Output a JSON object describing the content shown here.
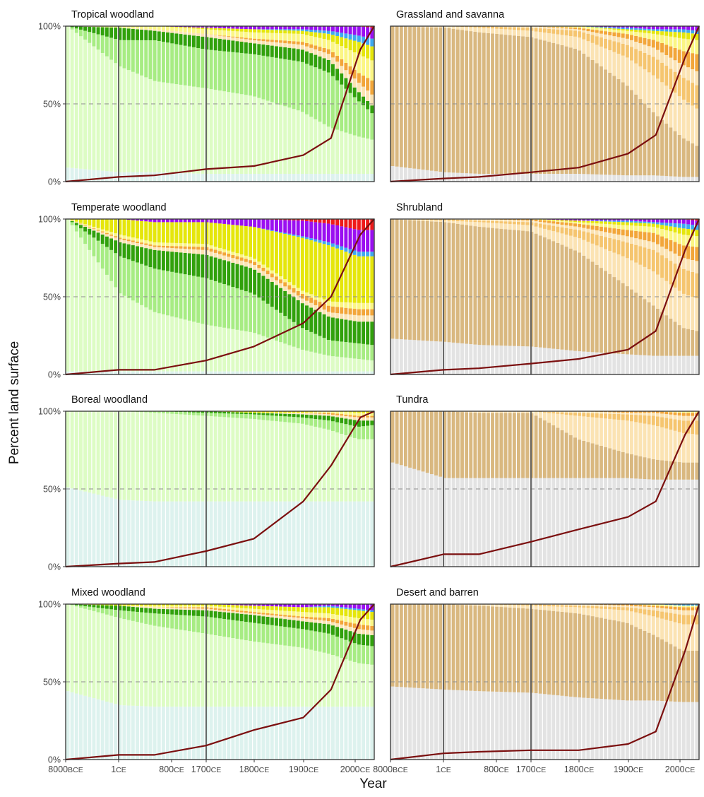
{
  "chart_data": {
    "type": "bar",
    "description_axis": {
      "xlabel": "Year",
      "ylabel": "Percent land surface",
      "yticks": [
        "0%",
        "50%",
        "100%"
      ],
      "xticks": [
        {
          "num": "8000",
          "era": "BCE"
        },
        {
          "num": "1",
          "era": "CE"
        },
        {
          "num": "800",
          "era": "CE"
        },
        {
          "num": "1700",
          "era": "CE"
        },
        {
          "num": "1800",
          "era": "CE"
        },
        {
          "num": "1900",
          "era": "CE"
        },
        {
          "num": "2000",
          "era": "CE"
        }
      ],
      "ylim": [
        0,
        100
      ],
      "vertical_reference_lines": [
        "1CE",
        "1700CE"
      ],
      "horizontal_reference_line": "50%",
      "grid": false
    },
    "colors": {
      "wild_treeless": "#e3e3e3",
      "wild_woodland_base": "#ddf2ee",
      "wild_woodland_light": "#ddfcc4",
      "wild_woodland_mid": "#a7ec83",
      "wild_woodland_dark": "#31a10c",
      "open_base": "#d9b880",
      "open_light": "#fbe3b3",
      "open_mid": "#f5c56f",
      "open_dark": "#e59a13",
      "cropland_light": "#fbf684",
      "cropland": "#e5e60b",
      "rangeland": "#f2a63a",
      "irrigated": "#3ea9f0",
      "village": "#9a0ff1",
      "urban": "#ee1a1a",
      "population_line": "#7b0f0f"
    },
    "series_order": [
      "base",
      "light",
      "mid",
      "dark",
      "rangeland_light",
      "rangeland",
      "cropland_light",
      "cropland",
      "irrigated",
      "village",
      "urban"
    ],
    "panels": [
      {
        "title": "Tropical woodland",
        "base_color": "wild_woodland_base",
        "light_color": "wild_woodland_light",
        "mid_color": "wild_woodland_mid",
        "dark_color": "wild_woodland_dark",
        "stack_keys": [
          "8000BCE",
          "1CE",
          "800CE",
          "1700CE",
          "1800CE",
          "1900CE",
          "1950CE",
          "2000CE",
          "2017CE"
        ],
        "base": [
          9,
          6,
          6,
          5,
          5,
          5,
          5,
          5,
          5
        ],
        "light": [
          91,
          68,
          58,
          55,
          50,
          40,
          30,
          24,
          22
        ],
        "mid": [
          0,
          17,
          26,
          25,
          27,
          32,
          35,
          23,
          17
        ],
        "dark": [
          0,
          8,
          6,
          8,
          7,
          8,
          8,
          6,
          5
        ],
        "rangeland_light": [
          0,
          0,
          1,
          2,
          2,
          3,
          4,
          6,
          7
        ],
        "rangeland": [
          0,
          0,
          0,
          0,
          1,
          2,
          3,
          6,
          9
        ],
        "cropland_light": [
          0,
          1,
          2,
          3,
          4,
          5,
          6,
          12,
          13
        ],
        "cropland": [
          0,
          0,
          0,
          1,
          2,
          2,
          4,
          8,
          9
        ],
        "irrigated": [
          0,
          0,
          0,
          0,
          0,
          1,
          2,
          4,
          5
        ],
        "village": [
          0,
          0,
          0,
          1,
          2,
          2,
          3,
          6,
          7
        ],
        "urban": [
          0,
          0,
          0,
          0,
          0,
          0,
          0,
          0,
          1
        ],
        "population": [
          0,
          3,
          4,
          8,
          10,
          17,
          28,
          85,
          100
        ]
      },
      {
        "title": "Grassland and savanna",
        "base_color": "wild_treeless",
        "light_color": "open_base",
        "mid_color": "open_light",
        "dark_color": "open_mid",
        "stack_keys": [
          "8000BCE",
          "1CE",
          "800CE",
          "1700CE",
          "1800CE",
          "1900CE",
          "1950CE",
          "2000CE",
          "2017CE"
        ],
        "base": [
          10,
          6,
          5,
          5,
          5,
          4,
          4,
          3,
          3
        ],
        "light": [
          90,
          93,
          91,
          88,
          80,
          58,
          40,
          25,
          20
        ],
        "mid": [
          0,
          1,
          3,
          4,
          8,
          18,
          24,
          25,
          24
        ],
        "dark": [
          0,
          0,
          1,
          2,
          4,
          8,
          12,
          14,
          15
        ],
        "rangeland_light": [
          0,
          0,
          0,
          1,
          1,
          4,
          6,
          8,
          9
        ],
        "rangeland": [
          0,
          0,
          0,
          0,
          1,
          3,
          5,
          9,
          11
        ],
        "cropland_light": [
          0,
          0,
          0,
          0,
          1,
          2,
          4,
          8,
          9
        ],
        "cropland": [
          0,
          0,
          0,
          0,
          0,
          1,
          2,
          4,
          4
        ],
        "irrigated": [
          0,
          0,
          0,
          0,
          0,
          1,
          1,
          2,
          2
        ],
        "village": [
          0,
          0,
          0,
          0,
          0,
          1,
          2,
          2,
          3
        ],
        "urban": [
          0,
          0,
          0,
          0,
          0,
          0,
          0,
          0,
          0
        ],
        "population": [
          0,
          2,
          3,
          6,
          9,
          18,
          30,
          80,
          100
        ]
      },
      {
        "title": "Temperate woodland",
        "base_color": "wild_woodland_base",
        "light_color": "wild_woodland_light",
        "mid_color": "wild_woodland_mid",
        "dark_color": "wild_woodland_dark",
        "stack_keys": [
          "8000BCE",
          "1CE",
          "800CE",
          "1700CE",
          "1800CE",
          "1900CE",
          "1950CE",
          "2000CE",
          "2017CE"
        ],
        "base": [
          2,
          2,
          2,
          2,
          2,
          2,
          2,
          2,
          2
        ],
        "light": [
          98,
          50,
          38,
          30,
          25,
          14,
          10,
          8,
          7
        ],
        "mid": [
          0,
          24,
          28,
          30,
          25,
          14,
          10,
          10,
          10
        ],
        "dark": [
          0,
          9,
          12,
          15,
          16,
          16,
          15,
          14,
          15
        ],
        "rangeland_light": [
          0,
          2,
          2,
          3,
          3,
          3,
          3,
          4,
          4
        ],
        "rangeland": [
          0,
          1,
          1,
          2,
          2,
          3,
          4,
          4,
          4
        ],
        "cropland_light": [
          0,
          2,
          2,
          2,
          2,
          2,
          3,
          4,
          4
        ],
        "cropland": [
          0,
          10,
          13,
          14,
          20,
          34,
          36,
          30,
          30
        ],
        "irrigated": [
          0,
          0,
          0,
          0,
          0,
          1,
          2,
          3,
          3
        ],
        "village": [
          0,
          0,
          2,
          2,
          5,
          10,
          12,
          14,
          14
        ],
        "urban": [
          0,
          0,
          0,
          0,
          0,
          1,
          3,
          7,
          7
        ],
        "population": [
          0,
          3,
          3,
          9,
          18,
          33,
          50,
          90,
          100
        ]
      },
      {
        "title": "Shrubland",
        "base_color": "wild_treeless",
        "light_color": "open_base",
        "mid_color": "open_light",
        "dark_color": "open_mid",
        "stack_keys": [
          "8000BCE",
          "1CE",
          "800CE",
          "1700CE",
          "1800CE",
          "1900CE",
          "1950CE",
          "2000CE",
          "2017CE"
        ],
        "base": [
          23,
          21,
          19,
          18,
          15,
          13,
          12,
          12,
          12
        ],
        "light": [
          77,
          77,
          76,
          74,
          64,
          44,
          32,
          18,
          16
        ],
        "mid": [
          0,
          1,
          3,
          4,
          9,
          18,
          22,
          22,
          21
        ],
        "dark": [
          0,
          1,
          1,
          2,
          5,
          10,
          14,
          16,
          16
        ],
        "rangeland_light": [
          0,
          0,
          1,
          1,
          2,
          4,
          5,
          7,
          8
        ],
        "rangeland": [
          0,
          0,
          0,
          1,
          2,
          4,
          6,
          8,
          9
        ],
        "cropland_light": [
          0,
          0,
          0,
          0,
          1,
          3,
          4,
          7,
          7
        ],
        "cropland": [
          0,
          0,
          0,
          0,
          1,
          2,
          2,
          4,
          4
        ],
        "irrigated": [
          0,
          0,
          0,
          0,
          0,
          1,
          1,
          3,
          3
        ],
        "village": [
          0,
          0,
          0,
          0,
          1,
          1,
          2,
          3,
          3
        ],
        "urban": [
          0,
          0,
          0,
          0,
          0,
          0,
          0,
          0,
          1
        ],
        "population": [
          0,
          3,
          4,
          7,
          10,
          16,
          28,
          80,
          100
        ]
      },
      {
        "title": "Boreal woodland",
        "base_color": "wild_woodland_base",
        "light_color": "wild_woodland_light",
        "mid_color": "wild_woodland_mid",
        "dark_color": "wild_woodland_dark",
        "stack_keys": [
          "8000BCE",
          "1CE",
          "800CE",
          "1700CE",
          "1800CE",
          "1900CE",
          "1950CE",
          "2000CE",
          "2017CE"
        ],
        "base": [
          51,
          43,
          42,
          42,
          42,
          42,
          42,
          42,
          42
        ],
        "light": [
          49,
          57,
          57,
          55,
          53,
          50,
          46,
          40,
          40
        ],
        "mid": [
          0,
          0,
          1,
          2,
          3,
          4,
          6,
          8,
          9
        ],
        "dark": [
          0,
          0,
          0,
          1,
          1,
          2,
          3,
          4,
          3
        ],
        "rangeland_light": [
          0,
          0,
          0,
          0,
          0,
          1,
          1,
          2,
          2
        ],
        "rangeland": [
          0,
          0,
          0,
          0,
          0,
          0,
          1,
          1,
          1
        ],
        "cropland_light": [
          0,
          0,
          0,
          0,
          0,
          0,
          1,
          2,
          2
        ],
        "cropland": [
          0,
          0,
          0,
          0,
          1,
          1,
          0,
          1,
          1
        ],
        "irrigated": [
          0,
          0,
          0,
          0,
          0,
          0,
          0,
          0,
          0
        ],
        "village": [
          0,
          0,
          0,
          0,
          0,
          0,
          0,
          0,
          0
        ],
        "urban": [
          0,
          0,
          0,
          0,
          0,
          0,
          0,
          0,
          0
        ],
        "population": [
          0,
          2,
          3,
          10,
          18,
          42,
          65,
          96,
          100
        ]
      },
      {
        "title": "Tundra",
        "base_color": "wild_treeless",
        "light_color": "open_base",
        "mid_color": "open_light",
        "dark_color": "open_mid",
        "stack_keys": [
          "8000BCE",
          "1CE",
          "800CE",
          "1700CE",
          "1800CE",
          "1900CE",
          "1950CE",
          "2000CE",
          "2017CE"
        ],
        "base": [
          67,
          57,
          57,
          57,
          57,
          57,
          56,
          56,
          56
        ],
        "light": [
          33,
          43,
          42,
          42,
          25,
          16,
          13,
          11,
          11
        ],
        "mid": [
          0,
          0,
          1,
          1,
          15,
          21,
          22,
          19,
          18
        ],
        "dark": [
          0,
          0,
          0,
          0,
          2,
          4,
          6,
          8,
          9
        ],
        "rangeland_light": [
          0,
          0,
          0,
          0,
          1,
          1,
          2,
          3,
          3
        ],
        "rangeland": [
          0,
          0,
          0,
          0,
          0,
          1,
          1,
          2,
          2
        ],
        "cropland_light": [
          0,
          0,
          0,
          0,
          0,
          0,
          0,
          1,
          1
        ],
        "cropland": [
          0,
          0,
          0,
          0,
          0,
          0,
          0,
          0,
          0
        ],
        "irrigated": [
          0,
          0,
          0,
          0,
          0,
          0,
          0,
          0,
          0
        ],
        "village": [
          0,
          0,
          0,
          0,
          0,
          0,
          0,
          0,
          0
        ],
        "urban": [
          0,
          0,
          0,
          0,
          0,
          0,
          0,
          0,
          0
        ],
        "population": [
          0,
          8,
          8,
          16,
          24,
          32,
          42,
          85,
          100
        ]
      },
      {
        "title": "Mixed woodland",
        "base_color": "wild_woodland_base",
        "light_color": "wild_woodland_light",
        "mid_color": "wild_woodland_mid",
        "dark_color": "wild_woodland_dark",
        "stack_keys": [
          "8000BCE",
          "1CE",
          "800CE",
          "1700CE",
          "1800CE",
          "1900CE",
          "1950CE",
          "2000CE",
          "2017CE"
        ],
        "base": [
          44,
          35,
          34,
          34,
          34,
          34,
          34,
          34,
          34
        ],
        "light": [
          56,
          56,
          52,
          47,
          42,
          38,
          34,
          28,
          27
        ],
        "mid": [
          0,
          5,
          8,
          11,
          12,
          12,
          13,
          12,
          12
        ],
        "dark": [
          0,
          3,
          3,
          4,
          5,
          5,
          6,
          7,
          7
        ],
        "rangeland_light": [
          0,
          0,
          1,
          1,
          1,
          2,
          2,
          3,
          3
        ],
        "rangeland": [
          0,
          0,
          0,
          1,
          1,
          1,
          2,
          3,
          3
        ],
        "cropland_light": [
          0,
          0,
          1,
          1,
          2,
          3,
          3,
          4,
          4
        ],
        "cropland": [
          0,
          1,
          1,
          1,
          2,
          3,
          4,
          5,
          5
        ],
        "irrigated": [
          0,
          0,
          0,
          0,
          0,
          0,
          1,
          1,
          1
        ],
        "village": [
          0,
          0,
          0,
          0,
          1,
          2,
          1,
          3,
          4
        ],
        "urban": [
          0,
          0,
          0,
          0,
          0,
          0,
          0,
          0,
          0
        ],
        "population": [
          0,
          3,
          3,
          9,
          19,
          27,
          45,
          90,
          100
        ]
      },
      {
        "title": "Desert and barren",
        "base_color": "wild_treeless",
        "light_color": "open_base",
        "mid_color": "open_light",
        "dark_color": "open_mid",
        "stack_keys": [
          "8000BCE",
          "1CE",
          "800CE",
          "1700CE",
          "1800CE",
          "1900CE",
          "1950CE",
          "2000CE",
          "2017CE"
        ],
        "base": [
          47,
          45,
          44,
          43,
          40,
          38,
          38,
          37,
          37
        ],
        "light": [
          53,
          55,
          55,
          54,
          54,
          50,
          42,
          33,
          33
        ],
        "mid": [
          0,
          0,
          1,
          2,
          4,
          8,
          12,
          17,
          17
        ],
        "dark": [
          0,
          0,
          0,
          1,
          1,
          2,
          4,
          6,
          6
        ],
        "rangeland_light": [
          0,
          0,
          0,
          0,
          1,
          1,
          2,
          3,
          3
        ],
        "rangeland": [
          0,
          0,
          0,
          0,
          0,
          1,
          1,
          2,
          2
        ],
        "cropland_light": [
          0,
          0,
          0,
          0,
          0,
          0,
          1,
          1,
          1
        ],
        "cropland": [
          0,
          0,
          0,
          0,
          0,
          0,
          0,
          0,
          0
        ],
        "irrigated": [
          0,
          0,
          0,
          0,
          0,
          0,
          0,
          1,
          1
        ],
        "village": [
          0,
          0,
          0,
          0,
          0,
          0,
          0,
          0,
          0
        ],
        "urban": [
          0,
          0,
          0,
          0,
          0,
          0,
          0,
          0,
          0
        ],
        "population": [
          0,
          4,
          5,
          6,
          6,
          10,
          18,
          70,
          100
        ]
      }
    ]
  }
}
